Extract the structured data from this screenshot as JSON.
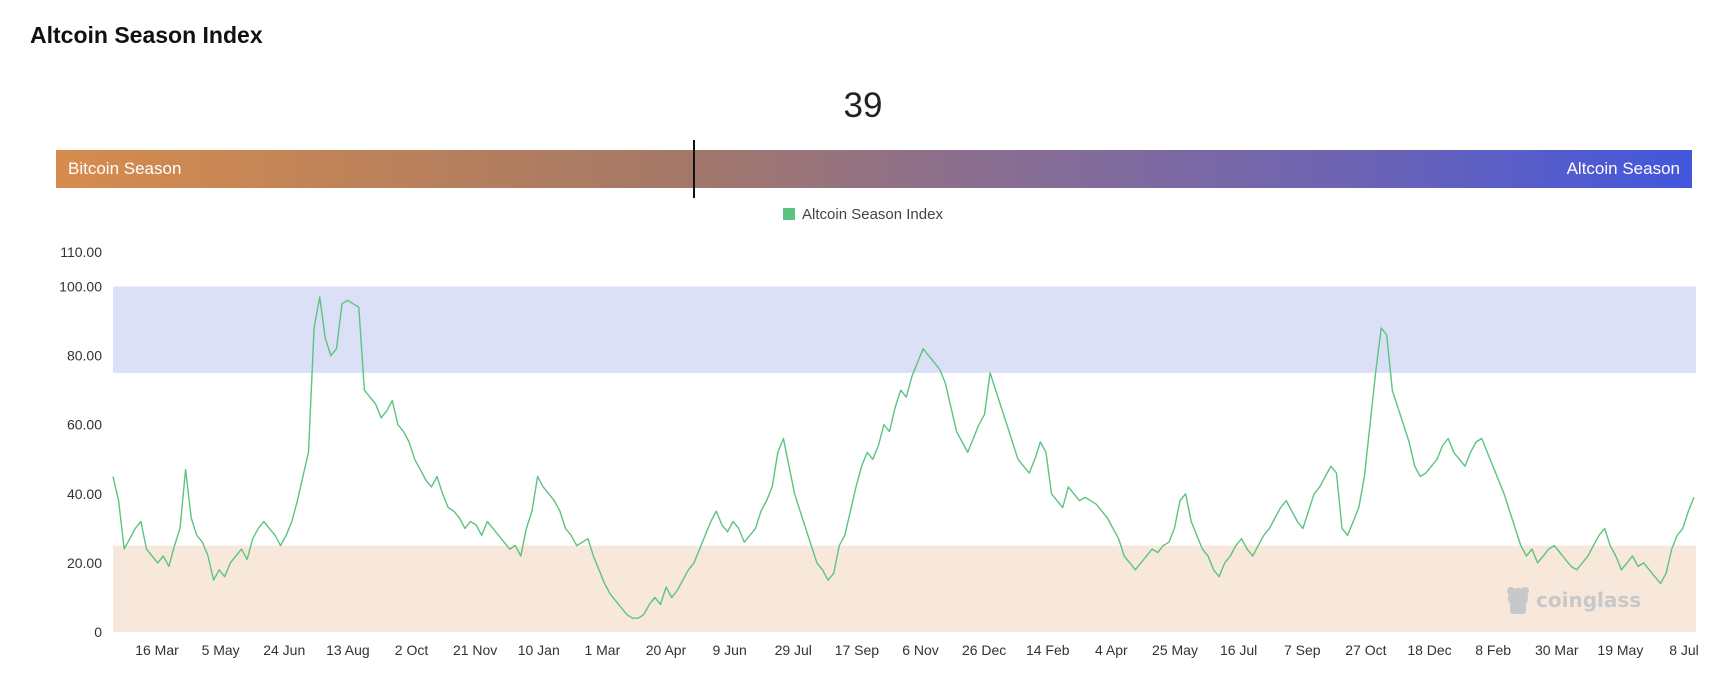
{
  "title": "Altcoin Season Index",
  "gauge": {
    "value": 39,
    "value_label": "39",
    "left_label": "Bitcoin Season",
    "right_label": "Altcoin Season",
    "gradient_start": "#d68c4c",
    "gradient_end": "#4257dd"
  },
  "watermark": "coinglass",
  "chart_data": {
    "type": "line",
    "title": "",
    "xlabel": "",
    "ylabel": "",
    "ylim": [
      0,
      110
    ],
    "y_ticks": [
      "0",
      "20.00",
      "40.00",
      "60.00",
      "80.00",
      "100.00",
      "110.00"
    ],
    "y_tick_values": [
      0,
      20,
      40,
      60,
      80,
      100,
      110
    ],
    "x_tick_labels": [
      "16 Mar",
      "5 May",
      "24 Jun",
      "13 Aug",
      "2 Oct",
      "21 Nov",
      "10 Jan",
      "1 Mar",
      "20 Apr",
      "9 Jun",
      "29 Jul",
      "17 Sep",
      "6 Nov",
      "26 Dec",
      "14 Feb",
      "4 Apr",
      "25 May",
      "16 Jul",
      "7 Sep",
      "27 Oct",
      "18 Dec",
      "8 Feb",
      "30 Mar",
      "19 May",
      "8 Jul"
    ],
    "legend": {
      "label": "Altcoin Season Index",
      "color": "#5cc47f",
      "position": "top-center"
    },
    "bands": [
      {
        "from": 75,
        "to": 100,
        "color": "#dbe0f7"
      },
      {
        "from": 0,
        "to": 25,
        "color": "#f8e8db"
      }
    ],
    "grid": false,
    "series": [
      {
        "name": "Altcoin Season Index",
        "color": "#5cc47f",
        "x_index": [
          0,
          1.2,
          2.4,
          3.6,
          4.8,
          6,
          7.2,
          8.4,
          9.6,
          10.8,
          12,
          13.2,
          14.4,
          15.6,
          16.8,
          18,
          19.2,
          20.4,
          21.6,
          22.8,
          24
        ],
        "values": [
          [
            45,
            38,
            24,
            27,
            30,
            32,
            24,
            22,
            20,
            22,
            19,
            25,
            30,
            47,
            33,
            28,
            26,
            22,
            15,
            18,
            16,
            20,
            22,
            24,
            21,
            27,
            30,
            32,
            30,
            28,
            25,
            28,
            32,
            38,
            45,
            52,
            88,
            97,
            85,
            80,
            82,
            95,
            96,
            95,
            94,
            70,
            68,
            66,
            62,
            64,
            67,
            60,
            58,
            55,
            50,
            47,
            44,
            42,
            45,
            40,
            36,
            35,
            33,
            30,
            32,
            31,
            28,
            32,
            30,
            28,
            26,
            24,
            25,
            22,
            30,
            35,
            45,
            42,
            40,
            38,
            35,
            30,
            28,
            25,
            26,
            27,
            22,
            18,
            14,
            11,
            9,
            7,
            5,
            4,
            4,
            5,
            8,
            10,
            8,
            13,
            10,
            12,
            15,
            18,
            20,
            24,
            28,
            32,
            35,
            31,
            29,
            32,
            30,
            26,
            28,
            30,
            35,
            38,
            42,
            52,
            56,
            48,
            40,
            35,
            30,
            25,
            20,
            18,
            15,
            17,
            25,
            28,
            35,
            42,
            48,
            52,
            50,
            54,
            60,
            58,
            65,
            70,
            68,
            74,
            78,
            82,
            80,
            78,
            76,
            72,
            65,
            58,
            55,
            52,
            56,
            60,
            63,
            75,
            70,
            65,
            60,
            55,
            50,
            48,
            46,
            50,
            55,
            52,
            40,
            38,
            36,
            42,
            40,
            38,
            39,
            38,
            37,
            35,
            33,
            30,
            27,
            22,
            20,
            18,
            20,
            22,
            24,
            23,
            25,
            26,
            30,
            38,
            40,
            32,
            28,
            24,
            22,
            18,
            16,
            20,
            22,
            25,
            27,
            24,
            22,
            25,
            28,
            30,
            33,
            36,
            38,
            35,
            32,
            30,
            35,
            40,
            42,
            45,
            48,
            46,
            30,
            28,
            32,
            36,
            45,
            60,
            75,
            88,
            86,
            70,
            65,
            60,
            55,
            48,
            45,
            46,
            48,
            50,
            54,
            56,
            52,
            50,
            48,
            52,
            55,
            56,
            52,
            48,
            44,
            40,
            35,
            30,
            25,
            22,
            24,
            20,
            22,
            24,
            25,
            23,
            21,
            19,
            18,
            20,
            22,
            25,
            28,
            30,
            25,
            22,
            18,
            20,
            22,
            19,
            20,
            18,
            16,
            14,
            17,
            24,
            28,
            30,
            35,
            39
          ]
        ]
      }
    ]
  }
}
